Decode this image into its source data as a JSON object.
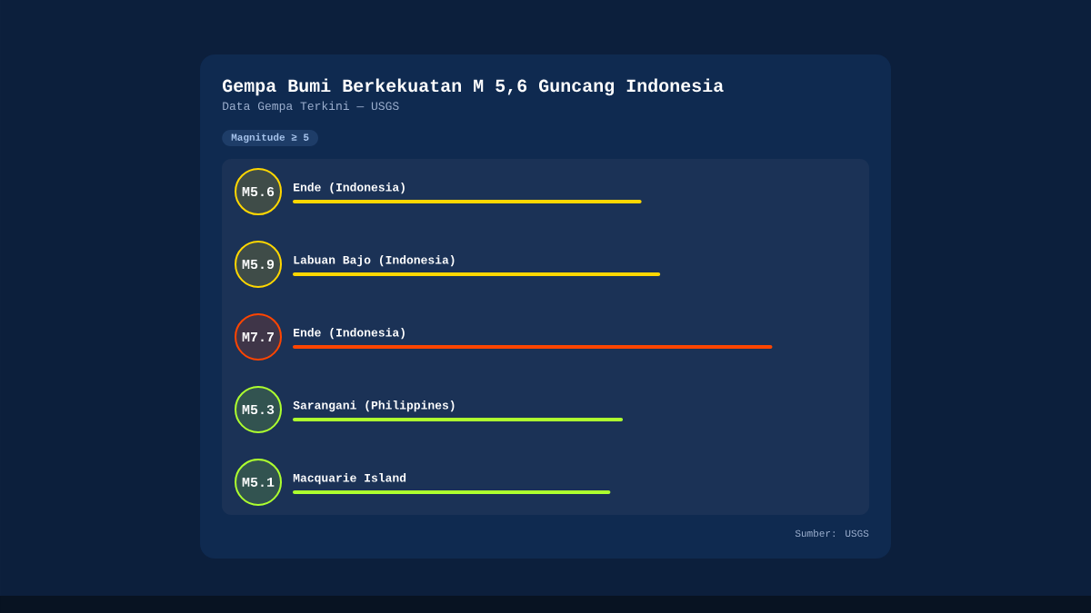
{
  "chart_data": {
    "type": "bar",
    "orientation": "horizontal",
    "title": "Gempa Bumi Berkekuatan M 5,6 Guncang Indonesia",
    "subtitle": "Data Gempa Terkini — USGS",
    "annotations": [
      "Magnitude ≥ 5",
      "Sumber: USGS"
    ],
    "categories": [
      "Ende (Indonesia)",
      "Labuan Bajo (Indonesia)",
      "Ende (Indonesia)",
      "Sarangani (Philippines)",
      "Macquarie Island"
    ],
    "values": [
      5.6,
      5.9,
      7.7,
      5.3,
      5.1
    ],
    "value_labels": [
      "M5.6",
      "M5.9",
      "M7.7",
      "M5.3",
      "M5.1"
    ],
    "colors": [
      "#ffd700",
      "#ffd700",
      "#ff4500",
      "#adff2f",
      "#adff2f"
    ],
    "tick_labels": "y"
  }
}
